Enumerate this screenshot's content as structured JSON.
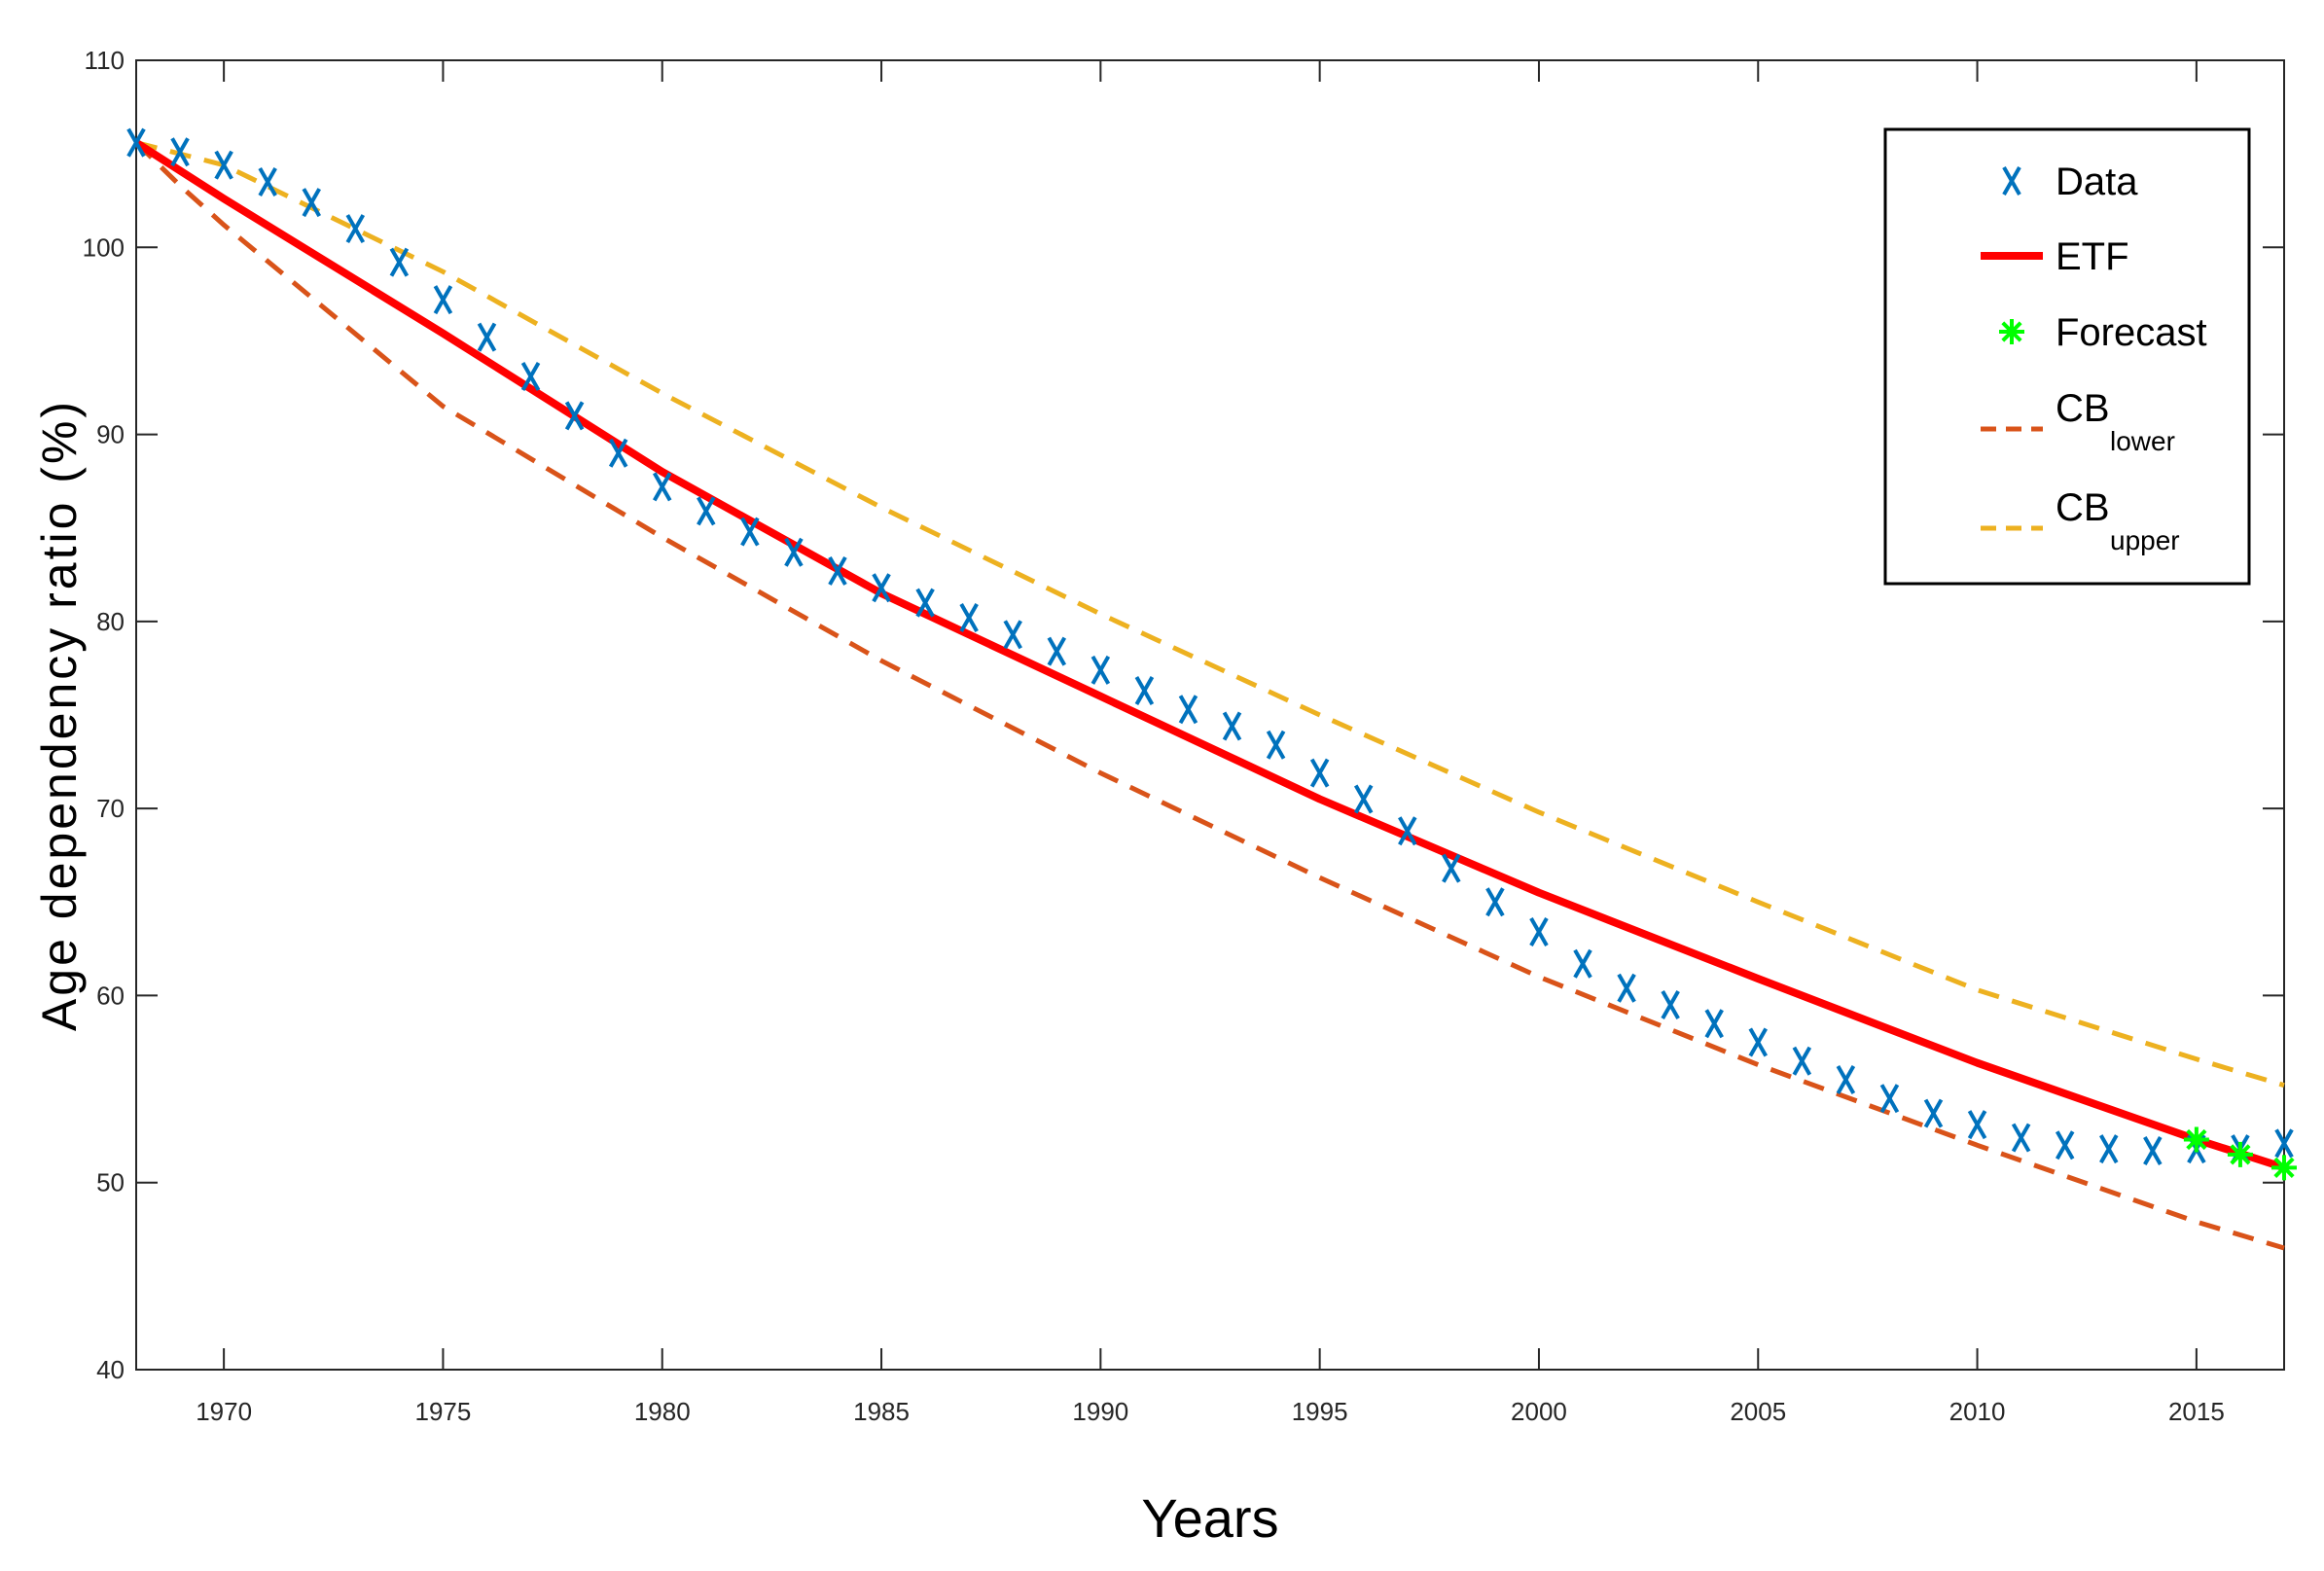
{
  "chart_data": {
    "type": "line",
    "xlabel": "Years",
    "ylabel": "Age dependency ratio (%)",
    "xlim": [
      1968,
      2017
    ],
    "ylim": [
      40,
      110
    ],
    "xticks": [
      1970,
      1975,
      1980,
      1985,
      1990,
      1995,
      2000,
      2005,
      2010,
      2015
    ],
    "yticks": [
      40,
      50,
      60,
      70,
      80,
      90,
      100,
      110
    ],
    "grid": false,
    "legend_position": "top-right",
    "legend": {
      "data": "Data",
      "etf": "ETF",
      "forecast": "Forecast",
      "cb_lower_main": "CB",
      "cb_lower_sub": "lower",
      "cb_upper_main": "CB",
      "cb_upper_sub": "upper"
    },
    "colors": {
      "data": "#0072BD",
      "etf": "#FF0000",
      "forecast": "#00FF00",
      "cb_lower": "#D95319",
      "cb_upper": "#EDB120"
    },
    "series": [
      {
        "name": "Data",
        "marker": "x",
        "x": [
          1968,
          1969,
          1970,
          1971,
          1972,
          1973,
          1974,
          1975,
          1976,
          1977,
          1978,
          1979,
          1980,
          1981,
          1982,
          1983,
          1984,
          1985,
          1986,
          1987,
          1988,
          1989,
          1990,
          1991,
          1992,
          1993,
          1994,
          1995,
          1996,
          1997,
          1998,
          1999,
          2000,
          2001,
          2002,
          2003,
          2004,
          2005,
          2006,
          2007,
          2008,
          2009,
          2010,
          2011,
          2012,
          2013,
          2014,
          2015,
          2016,
          2017
        ],
        "y": [
          105.6,
          105.1,
          104.4,
          103.5,
          102.4,
          101.0,
          99.2,
          97.2,
          95.2,
          93.1,
          91.0,
          89.0,
          87.2,
          85.9,
          84.8,
          83.7,
          82.7,
          81.8,
          81.0,
          80.2,
          79.3,
          78.4,
          77.4,
          76.3,
          75.3,
          74.4,
          73.4,
          71.9,
          70.5,
          68.8,
          66.8,
          65.0,
          63.4,
          61.7,
          60.4,
          59.5,
          58.5,
          57.5,
          56.5,
          55.5,
          54.5,
          53.7,
          53.1,
          52.4,
          52.0,
          51.8,
          51.7,
          51.8,
          51.8,
          52.1
        ]
      },
      {
        "name": "ETF",
        "line": "solid",
        "x": [
          1968,
          1970,
          1975,
          1980,
          1985,
          1990,
          1995,
          2000,
          2005,
          2010,
          2015,
          2017
        ],
        "y": [
          105.6,
          102.6,
          95.4,
          88.0,
          81.5,
          76.0,
          70.5,
          65.5,
          60.9,
          56.4,
          52.3,
          50.8
        ]
      },
      {
        "name": "Forecast",
        "marker": "asterisk",
        "x": [
          2015,
          2016,
          2017
        ],
        "y": [
          52.3,
          51.5,
          50.8
        ]
      },
      {
        "name": "CB lower",
        "line": "dashed",
        "x": [
          1968,
          1969,
          1970,
          1975,
          1980,
          1985,
          1990,
          1995,
          2000,
          2005,
          2010,
          2015,
          2017
        ],
        "y": [
          105.6,
          103.3,
          101.2,
          91.5,
          84.5,
          77.9,
          71.9,
          66.3,
          61.0,
          56.3,
          52.0,
          47.9,
          46.5
        ]
      },
      {
        "name": "CB upper",
        "line": "dashed",
        "x": [
          1968,
          1970,
          1975,
          1980,
          1985,
          1990,
          1995,
          2000,
          2005,
          2010,
          2015,
          2017
        ],
        "y": [
          105.6,
          104.4,
          98.7,
          92.2,
          86.1,
          80.4,
          75.0,
          69.8,
          65.0,
          60.3,
          56.6,
          55.2
        ]
      }
    ]
  }
}
